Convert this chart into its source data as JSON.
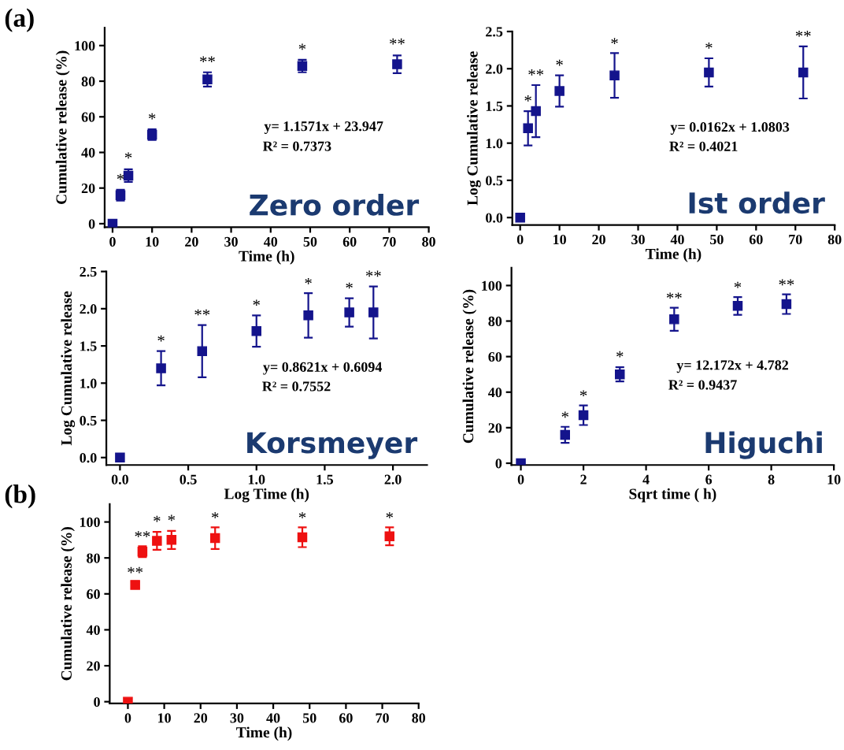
{
  "chart_data": [
    {
      "type": "scatter",
      "xlabel": "Time (h)",
      "ylabel": "Cumulative release (%)",
      "x": [
        0,
        2,
        4,
        10,
        24,
        48,
        72
      ],
      "xlim": [
        -2,
        80
      ],
      "xticks": [
        0,
        10,
        20,
        30,
        40,
        50,
        60,
        70,
        80
      ],
      "ylim": [
        -2,
        110
      ],
      "yticks": [
        0,
        20,
        40,
        60,
        80,
        100
      ],
      "marker": "square",
      "series": [
        {
          "color": "#14148c",
          "values": [
            0,
            16,
            27,
            50,
            81,
            88.5,
            89.5
          ],
          "errors": [
            null,
            3,
            3.5,
            3,
            4,
            3.5,
            5
          ]
        }
      ],
      "annotations": [
        "y= 1.1571x + 23.947",
        "R² = 0.7373",
        "Zero order",
        "(a)",
        {
          "text": "*",
          "x": 2,
          "y": 20
        },
        {
          "text": "*",
          "x": 4,
          "y": 32
        },
        {
          "text": "*",
          "x": 10,
          "y": 54
        },
        {
          "text": "**",
          "x": 24,
          "y": 86
        },
        {
          "text": "*",
          "x": 48,
          "y": 93
        },
        {
          "text": "**",
          "x": 72,
          "y": 96
        }
      ]
    },
    {
      "type": "scatter",
      "xlabel": "Time (h)",
      "ylabel": "Log Cumulative release",
      "x": [
        0,
        2,
        4,
        10,
        24,
        48,
        72
      ],
      "xlim": [
        -2,
        80
      ],
      "xticks": [
        0,
        10,
        20,
        30,
        40,
        50,
        60,
        70,
        80
      ],
      "ylim": [
        -0.1,
        2.5
      ],
      "yticks": [
        {
          "value": 0,
          "label": "0.0"
        },
        0.5,
        {
          "value": 1,
          "label": "1.0"
        },
        1.5,
        {
          "value": 2,
          "label": "2.0"
        },
        2.5
      ],
      "marker": "square",
      "series": [
        {
          "color": "#14148c",
          "values": [
            0,
            1.2,
            1.43,
            1.7,
            1.91,
            1.95,
            1.95
          ],
          "errors": [
            null,
            0.23,
            0.35,
            0.21,
            0.3,
            0.19,
            0.35
          ]
        }
      ],
      "annotations": [
        "y= 0.0162x + 1.0803",
        "R² = 0.4021",
        "Ist order",
        {
          "text": "*",
          "x": 2,
          "y": 1.45
        },
        {
          "text": "**",
          "x": 4,
          "y": 1.8
        },
        {
          "text": "*",
          "x": 10,
          "y": 1.93
        },
        {
          "text": "*",
          "x": 24,
          "y": 2.22
        },
        {
          "text": "*",
          "x": 48,
          "y": 2.16
        },
        {
          "text": "**",
          "x": 72,
          "y": 2.32
        }
      ]
    },
    {
      "type": "scatter",
      "xlabel": "Log Time (h)",
      "ylabel": "Log Cumulative release",
      "x": [
        0,
        0.301,
        0.602,
        1,
        1.38,
        1.68,
        1.857
      ],
      "xlim": [
        -0.1,
        2.25
      ],
      "xticks": [
        {
          "value": 0,
          "label": "0.0"
        },
        0.5,
        {
          "value": 1,
          "label": "1.0"
        },
        1.5,
        {
          "value": 2,
          "label": "2.0"
        }
      ],
      "ylim": [
        -0.1,
        2.5
      ],
      "yticks": [
        {
          "value": 0,
          "label": "0.0"
        },
        0.5,
        {
          "value": 1,
          "label": "1.0"
        },
        1.5,
        {
          "value": 2,
          "label": "2.0"
        },
        2.5
      ],
      "marker": "square",
      "series": [
        {
          "color": "#14148c",
          "values": [
            0,
            1.2,
            1.43,
            1.7,
            1.91,
            1.95,
            1.95
          ],
          "errors": [
            null,
            0.23,
            0.35,
            0.21,
            0.3,
            0.19,
            0.35
          ]
        }
      ],
      "annotations": [
        "y= 0.8621x + 0.6094",
        "R² = 0.7552",
        "Korsmeyer",
        {
          "text": "*",
          "x": 0.301,
          "y": 1.45
        },
        {
          "text": "**",
          "x": 0.602,
          "y": 1.8
        },
        {
          "text": "*",
          "x": 1,
          "y": 1.93
        },
        {
          "text": "*",
          "x": 1.38,
          "y": 2.22
        },
        {
          "text": "*",
          "x": 1.68,
          "y": 2.16
        },
        {
          "text": "**",
          "x": 1.857,
          "y": 2.32
        }
      ]
    },
    {
      "type": "scatter",
      "xlabel": "Sqrt time ( h)",
      "ylabel": "Cumulative release (%)",
      "x": [
        0,
        1.414,
        2,
        3.162,
        4.899,
        6.928,
        8.485
      ],
      "xlim": [
        -0.3,
        10
      ],
      "xticks": [
        0,
        2,
        4,
        6,
        8,
        10
      ],
      "ylim": [
        -1,
        110
      ],
      "yticks": [
        0,
        20,
        40,
        60,
        80,
        100
      ],
      "marker": "square",
      "series": [
        {
          "color": "#14148c",
          "values": [
            0,
            16,
            27,
            50,
            81,
            88.5,
            89.5
          ],
          "errors": [
            null,
            4.5,
            5.5,
            4,
            6.5,
            5,
            5.5
          ]
        }
      ],
      "annotations": [
        "y= 12.172x + 4.782",
        "R² = 0.9437",
        "Higuchi",
        {
          "text": "*",
          "x": 1.414,
          "y": 21
        },
        {
          "text": "*",
          "x": 2,
          "y": 33
        },
        {
          "text": "*",
          "x": 3.162,
          "y": 55
        },
        {
          "text": "**",
          "x": 4.899,
          "y": 88
        },
        {
          "text": "*",
          "x": 6.928,
          "y": 94
        },
        {
          "text": "**",
          "x": 8.485,
          "y": 95.5
        }
      ]
    },
    {
      "type": "scatter",
      "xlabel": "Time (h)",
      "ylabel": "Cumulative release (%)",
      "x": [
        0,
        2,
        4,
        8,
        12,
        24,
        48,
        72
      ],
      "xlim": [
        -5,
        80
      ],
      "xticks": [
        0,
        10,
        20,
        30,
        40,
        50,
        60,
        70,
        80
      ],
      "ylim": [
        -1,
        110
      ],
      "yticks": [
        0,
        20,
        40,
        60,
        80,
        100
      ],
      "marker": "square",
      "series": [
        {
          "color": "#ee1111",
          "values": [
            0,
            65,
            83.5,
            89.5,
            90,
            91,
            91.5,
            92
          ],
          "errors": [
            null,
            1.5,
            3,
            5,
            5,
            6,
            5.5,
            5
          ]
        }
      ],
      "annotations": [
        "(b)",
        {
          "text": "**",
          "x": 2,
          "y": 67
        },
        {
          "text": "**",
          "x": 4,
          "y": 87
        },
        {
          "text": "*",
          "x": 8,
          "y": 95.5
        },
        {
          "text": "*",
          "x": 12,
          "y": 96
        },
        {
          "text": "*",
          "x": 24,
          "y": 97.5
        },
        {
          "text": "*",
          "x": 48,
          "y": 97.5
        },
        {
          "text": "*",
          "x": 72,
          "y": 97.5
        }
      ]
    }
  ]
}
